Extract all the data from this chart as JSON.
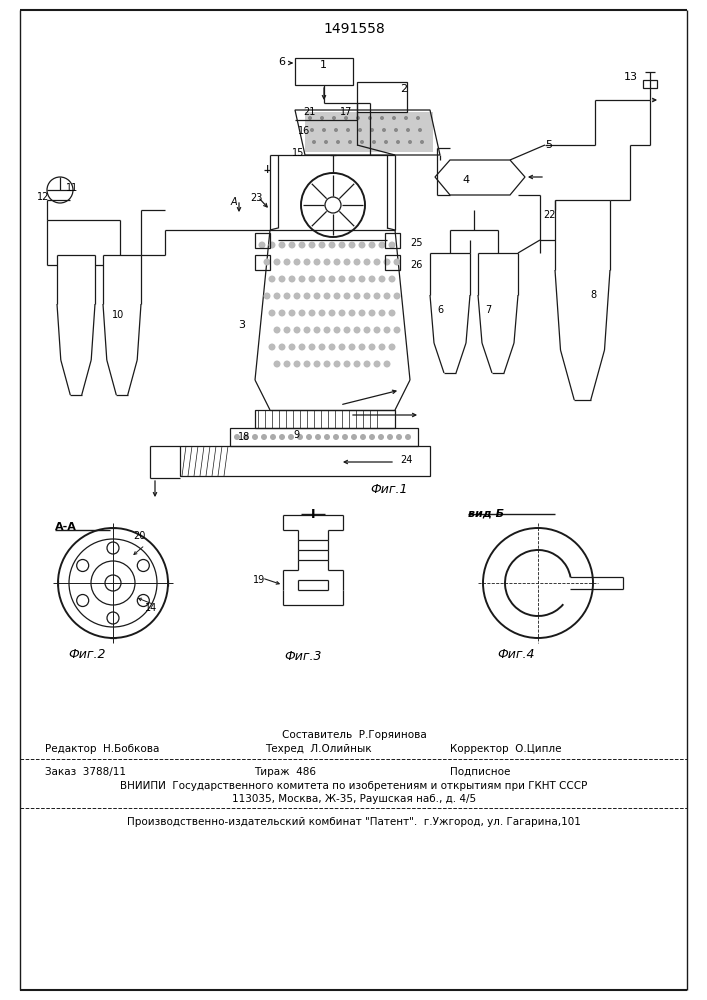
{
  "patent_number": "1491558",
  "background_color": "#ffffff",
  "line_color": "#1a1a1a",
  "fig_width": 7.07,
  "fig_height": 10.0,
  "dpi": 100,
  "title_text": "1491558",
  "fig1_caption": "Фиг.1",
  "fig2_caption": "Фиг.2",
  "fig3_caption": "Фиг.3",
  "fig4_caption": "Фиг.4",
  "label_AA": "A-A",
  "label_I": "I",
  "label_vidB": "вид Б",
  "footer_line1_center": "Составитель  Р.Горяинова",
  "footer_line2_left": "Редактор  Н.Бобкова",
  "footer_line2_center": "Техред  Л.Олийнык",
  "footer_line2_right": "Корректор  О.Ципле",
  "footer_order": "Заказ  3788/11",
  "footer_tirazh": "Тираж  486",
  "footer_podpisnoe": "Подписное",
  "footer_vniiipi": "ВНИИПИ  Государственного комитета по изобретениям и открытиям при ГКНТ СССР",
  "footer_address": "113035, Москва, Ж-35, Раушская наб., д. 4/5",
  "footer_patent": "Производственно-издательский комбинат \"Патент\".  г.Ужгород, ул. Гагарина,101"
}
